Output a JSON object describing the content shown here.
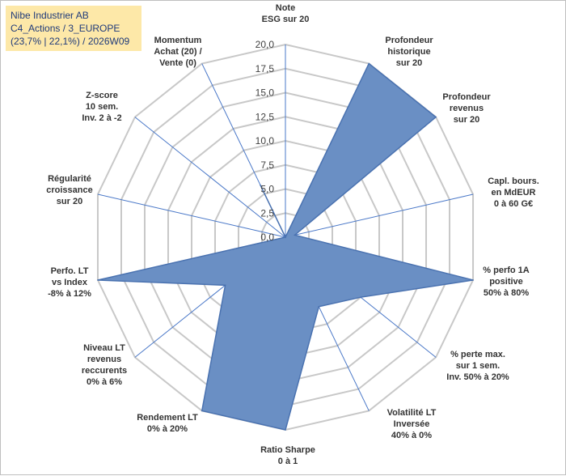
{
  "header": {
    "line1": "Nibe Industrier AB",
    "line2": "C4_Actions / 3_EUROPE",
    "line3": "(23,7% | 22,1%) / 2026W09"
  },
  "chart_data": {
    "type": "radar",
    "axes": [
      "Note\nESG sur 20",
      "Profondeur\nhistorique\nsur 20",
      "Profondeur\nrevenus\nsur 20",
      "Capl. bours.\nen MdEUR\n0 à 60 G€",
      "% perfo 1A\npositive\n50% à 80%",
      "% perte max.\nsur 1 sem.\nInv. 50% à 20%",
      "Volatilité LT\nInversée\n40% à 0%",
      "Ratio Sharpe\n0 à 1",
      "Rendement LT\n0% à 20%",
      "Niveau LT\nrevenus\nreccurents\n0% à 6%",
      "Perfo. LT\nvs Index\n-8% à 12%",
      "Régularité\ncroissance\nsur 20",
      "Z-score\n10 sem.\nInv. 2 à -2",
      "Momentum\nAchat (20) /\nVente (0)"
    ],
    "r_ticks": [
      "0,0",
      "2,5",
      "5,0",
      "7,5",
      "10,0",
      "12,5",
      "15,0",
      "17,5",
      "20,0"
    ],
    "r_max": 20,
    "values": [
      0,
      20,
      20,
      1,
      20,
      10,
      8,
      20,
      20,
      8,
      20,
      0,
      0,
      6
    ],
    "fill_color": "#6a8fc4",
    "line_color": "#4a72b0",
    "grid_color": "#c8c8c8",
    "spoke_color": "#4a78c8"
  }
}
